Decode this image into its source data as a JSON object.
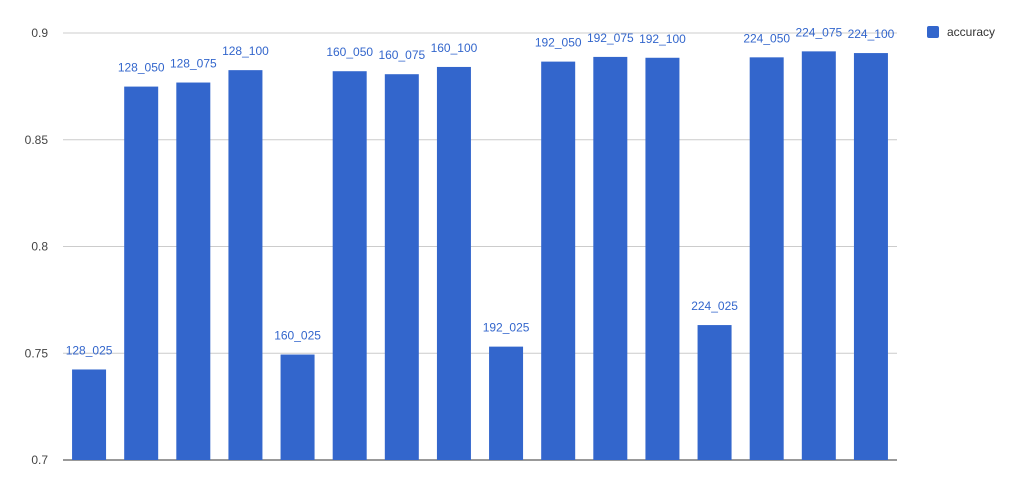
{
  "chart_data": {
    "type": "bar",
    "title": "",
    "xlabel": "",
    "ylabel": "",
    "ylim": [
      0.7,
      0.9
    ],
    "yticks": [
      0.7,
      0.75,
      0.8,
      0.85,
      0.9
    ],
    "ytick_labels": [
      "0.7",
      "0.75",
      "0.8",
      "0.85",
      "0.9"
    ],
    "grid": true,
    "legend_position": "top-right",
    "categories": [
      "128_025",
      "128_050",
      "128_075",
      "128_100",
      "160_025",
      "160_050",
      "160_075",
      "160_100",
      "192_025",
      "192_050",
      "192_075",
      "192_100",
      "224_025",
      "224_050",
      "224_075",
      "224_100"
    ],
    "series": [
      {
        "name": "accuracy",
        "color": "#3366cc",
        "values": [
          0.7424,
          0.8749,
          0.8768,
          0.8826,
          0.7494,
          0.8821,
          0.8807,
          0.8841,
          0.7531,
          0.8866,
          0.8888,
          0.8884,
          0.7632,
          0.8886,
          0.8914,
          0.8906
        ]
      }
    ]
  }
}
